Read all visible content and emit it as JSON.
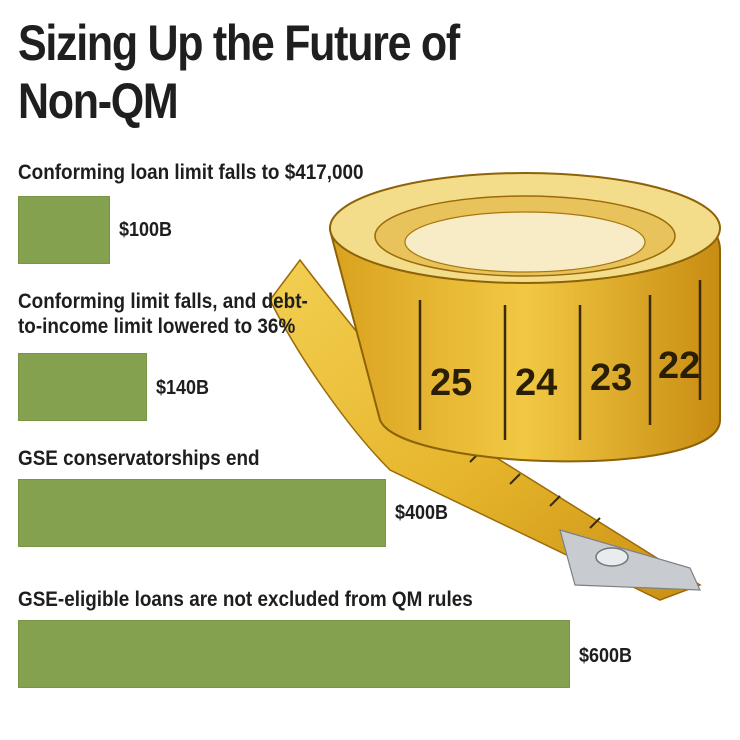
{
  "title": "Sizing Up the Future of Non-QM",
  "chart_data": {
    "type": "bar",
    "orientation": "horizontal",
    "title": "Sizing Up the Future of Non-QM",
    "categories": [
      [
        "Conforming loan limit falls to $417,000"
      ],
      [
        "Conforming limit falls, and debt-",
        "to-income limit lowered to 36%"
      ],
      [
        "GSE conservatorships end"
      ],
      [
        "GSE-eligible loans are not excluded from QM rules"
      ]
    ],
    "values": [
      100,
      140,
      400,
      600
    ],
    "value_labels": [
      "$100B",
      "$140B",
      "$400B",
      "$600B"
    ],
    "bar_color": "#84a14f"
  },
  "colors": {
    "bar": "#84a14f",
    "tape": "#e8b52a",
    "text": "#1e1e1e"
  }
}
